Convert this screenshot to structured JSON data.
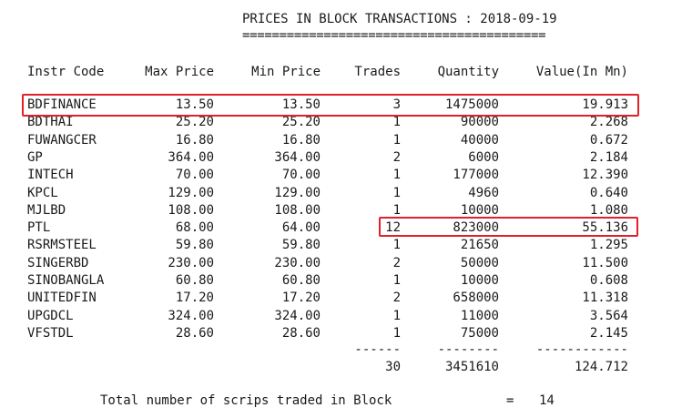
{
  "title": "PRICES IN BLOCK TRANSACTIONS : 2018-09-19",
  "title_underline": "=========================================",
  "headers": {
    "code": "Instr Code",
    "max": "Max Price",
    "min": "Min Price",
    "trades": "Trades",
    "qty": "Quantity",
    "value": "Value(In Mn)"
  },
  "rows": [
    {
      "code": "BDFINANCE",
      "max": "13.50",
      "min": "13.50",
      "trades": "3",
      "qty": "1475000",
      "value": "19.913"
    },
    {
      "code": "BDTHAI",
      "max": "25.20",
      "min": "25.20",
      "trades": "1",
      "qty": "90000",
      "value": "2.268"
    },
    {
      "code": "FUWANGCER",
      "max": "16.80",
      "min": "16.80",
      "trades": "1",
      "qty": "40000",
      "value": "0.672"
    },
    {
      "code": "GP",
      "max": "364.00",
      "min": "364.00",
      "trades": "2",
      "qty": "6000",
      "value": "2.184"
    },
    {
      "code": "INTECH",
      "max": "70.00",
      "min": "70.00",
      "trades": "1",
      "qty": "177000",
      "value": "12.390"
    },
    {
      "code": "KPCL",
      "max": "129.00",
      "min": "129.00",
      "trades": "1",
      "qty": "4960",
      "value": "0.640"
    },
    {
      "code": "MJLBD",
      "max": "108.00",
      "min": "108.00",
      "trades": "1",
      "qty": "10000",
      "value": "1.080"
    },
    {
      "code": "PTL",
      "max": "68.00",
      "min": "64.00",
      "trades": "12",
      "qty": "823000",
      "value": "55.136"
    },
    {
      "code": "RSRMSTEEL",
      "max": "59.80",
      "min": "59.80",
      "trades": "1",
      "qty": "21650",
      "value": "1.295"
    },
    {
      "code": "SINGERBD",
      "max": "230.00",
      "min": "230.00",
      "trades": "2",
      "qty": "50000",
      "value": "11.500"
    },
    {
      "code": "SINOBANGLA",
      "max": "60.80",
      "min": "60.80",
      "trades": "1",
      "qty": "10000",
      "value": "0.608"
    },
    {
      "code": "UNITEDFIN",
      "max": "17.20",
      "min": "17.20",
      "trades": "2",
      "qty": "658000",
      "value": "11.318"
    },
    {
      "code": "UPGDCL",
      "max": "324.00",
      "min": "324.00",
      "trades": "1",
      "qty": "11000",
      "value": "3.564"
    },
    {
      "code": "VFSTDL",
      "max": "28.60",
      "min": "28.60",
      "trades": "1",
      "qty": "75000",
      "value": "2.145"
    }
  ],
  "separators": {
    "trades": "------",
    "qty": "--------",
    "value": "------------"
  },
  "totals": {
    "trades": "30",
    "qty": "3451610",
    "value": "124.712"
  },
  "footer": {
    "label": "Total number of scrips traded in Block",
    "eq": "=",
    "count": "14"
  },
  "highlight_color": "#e0202a"
}
